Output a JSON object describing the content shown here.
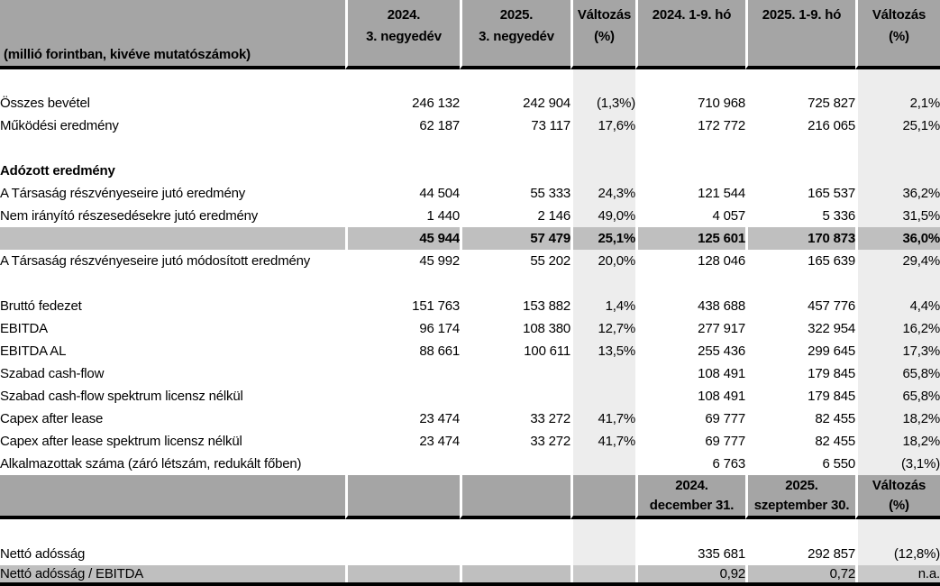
{
  "table": {
    "unit_note": "(millió forintban, kivéve mutatószámok)",
    "colors": {
      "header_bg": "#a5a5a5",
      "subtotal_bg": "#bfbfbf",
      "change_column_bg": "#ededed",
      "rule": "#000000"
    },
    "header_row_1": [
      {
        "line1": "2024.",
        "line2": "3. negyedév"
      },
      {
        "line1": "2025.",
        "line2": "3. negyedév"
      },
      {
        "line1": "Változás",
        "line2": "(%)"
      },
      {
        "line1": "2024. 1-9. hó",
        "line2": ""
      },
      {
        "line1": "2025. 1-9. hó",
        "line2": ""
      },
      {
        "line1": "Változás",
        "line2": "(%)"
      }
    ],
    "rows_main": [
      {
        "type": "spacer",
        "label": "",
        "values": [
          "",
          "",
          "",
          "",
          "",
          ""
        ]
      },
      {
        "type": "data",
        "label": "Összes bevétel",
        "values": [
          "246 132",
          "242 904",
          "(1,3%)",
          "710 968",
          "725 827",
          "2,1%"
        ]
      },
      {
        "type": "data",
        "label": "Működési eredmény",
        "values": [
          "62 187",
          "73 117",
          "17,6%",
          "172 772",
          "216 065",
          "25,1%"
        ]
      },
      {
        "type": "spacer",
        "label": "",
        "values": [
          "",
          "",
          "",
          "",
          "",
          ""
        ]
      },
      {
        "type": "section",
        "label": "Adózott eredmény",
        "values": [
          "",
          "",
          "",
          "",
          "",
          ""
        ]
      },
      {
        "type": "data",
        "label": "A Társaság részvényeseire jutó eredmény",
        "values": [
          "44 504",
          "55 333",
          "24,3%",
          "121 544",
          "165 537",
          "36,2%"
        ]
      },
      {
        "type": "data",
        "label": "Nem irányító részesedésekre jutó eredmény",
        "values": [
          "1 440",
          "2 146",
          "49,0%",
          "4 057",
          "5 336",
          "31,5%"
        ]
      },
      {
        "type": "total",
        "label": "",
        "values": [
          "45 944",
          "57 479",
          "25,1%",
          "125 601",
          "170 873",
          "36,0%"
        ]
      },
      {
        "type": "data",
        "label": "A Társaság részvényeseire jutó módosított eredmény",
        "values": [
          "45 992",
          "55 202",
          "20,0%",
          "128 046",
          "165 639",
          "29,4%"
        ]
      },
      {
        "type": "spacer",
        "label": "",
        "values": [
          "",
          "",
          "",
          "",
          "",
          ""
        ]
      },
      {
        "type": "data",
        "label": "Bruttó fedezet",
        "values": [
          "151 763",
          "153 882",
          "1,4%",
          "438 688",
          "457 776",
          "4,4%"
        ]
      },
      {
        "type": "data",
        "label": "EBITDA",
        "values": [
          "96 174",
          "108 380",
          "12,7%",
          "277 917",
          "322 954",
          "16,2%"
        ]
      },
      {
        "type": "data",
        "label": "EBITDA AL",
        "values": [
          "88 661",
          "100 611",
          "13,5%",
          "255 436",
          "299 645",
          "17,3%"
        ]
      },
      {
        "type": "data",
        "label": "Szabad cash-flow",
        "values": [
          "",
          "",
          "",
          "108 491",
          "179 845",
          "65,8%"
        ]
      },
      {
        "type": "data",
        "label": "Szabad cash-flow spektrum licensz nélkül",
        "values": [
          "",
          "",
          "",
          "108 491",
          "179 845",
          "65,8%"
        ]
      },
      {
        "type": "data",
        "label": "Capex after lease",
        "values": [
          "23 474",
          "33 272",
          "41,7%",
          "69 777",
          "82 455",
          "18,2%"
        ]
      },
      {
        "type": "data",
        "label": "Capex after lease spektrum licensz nélkül",
        "values": [
          "23 474",
          "33 272",
          "41,7%",
          "69 777",
          "82 455",
          "18,2%"
        ]
      },
      {
        "type": "data",
        "label": "Alkalmazottak száma (záró létszám, redukált főben)",
        "values": [
          "",
          "",
          "",
          "6 763",
          "6 550",
          "(3,1%)"
        ]
      }
    ],
    "header_row_2": [
      {
        "line1": "2024.",
        "line2": "december 31."
      },
      {
        "line1": "2025.",
        "line2": "szeptember 30."
      },
      {
        "line1": "Változás",
        "line2": "(%)"
      }
    ],
    "rows_bottom": [
      {
        "type": "spacer",
        "label": "",
        "values": [
          "",
          "",
          "",
          "",
          "",
          ""
        ]
      },
      {
        "type": "netto",
        "label": "Nettó adósság",
        "values": [
          "",
          "",
          "",
          "335 681",
          "292 857",
          "(12,8%)"
        ]
      },
      {
        "type": "grayrow",
        "label": "Nettó adósság / EBITDA",
        "values": [
          "",
          "",
          "",
          "0,92",
          "0,72",
          "n.a."
        ]
      }
    ]
  }
}
